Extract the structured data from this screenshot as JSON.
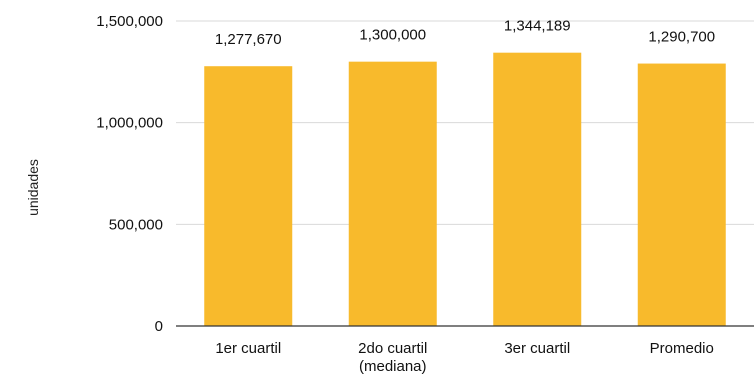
{
  "chart_data": {
    "type": "bar",
    "categories": [
      [
        "1er cuartil"
      ],
      [
        "2do cuartil",
        "(mediana)"
      ],
      [
        "3er cuartil"
      ],
      [
        "Promedio"
      ]
    ],
    "values": [
      1277670,
      1300000,
      1344189,
      1290700
    ],
    "data_labels": [
      "1,277,670",
      "1,300,000",
      "1,344,189",
      "1,290,700"
    ],
    "title": "",
    "xlabel": "",
    "ylabel": "unidades",
    "ylim": [
      0,
      1500000
    ],
    "yticks": [
      0,
      500000,
      1000000,
      1500000
    ],
    "ytick_labels": [
      "0",
      "500,000",
      "1,000,000",
      "1,500,000"
    ],
    "grid": true,
    "legend": "none",
    "colors": {
      "bar": "#F8BA2C",
      "grid": "#D9D9D9",
      "axis": "#333333"
    }
  }
}
